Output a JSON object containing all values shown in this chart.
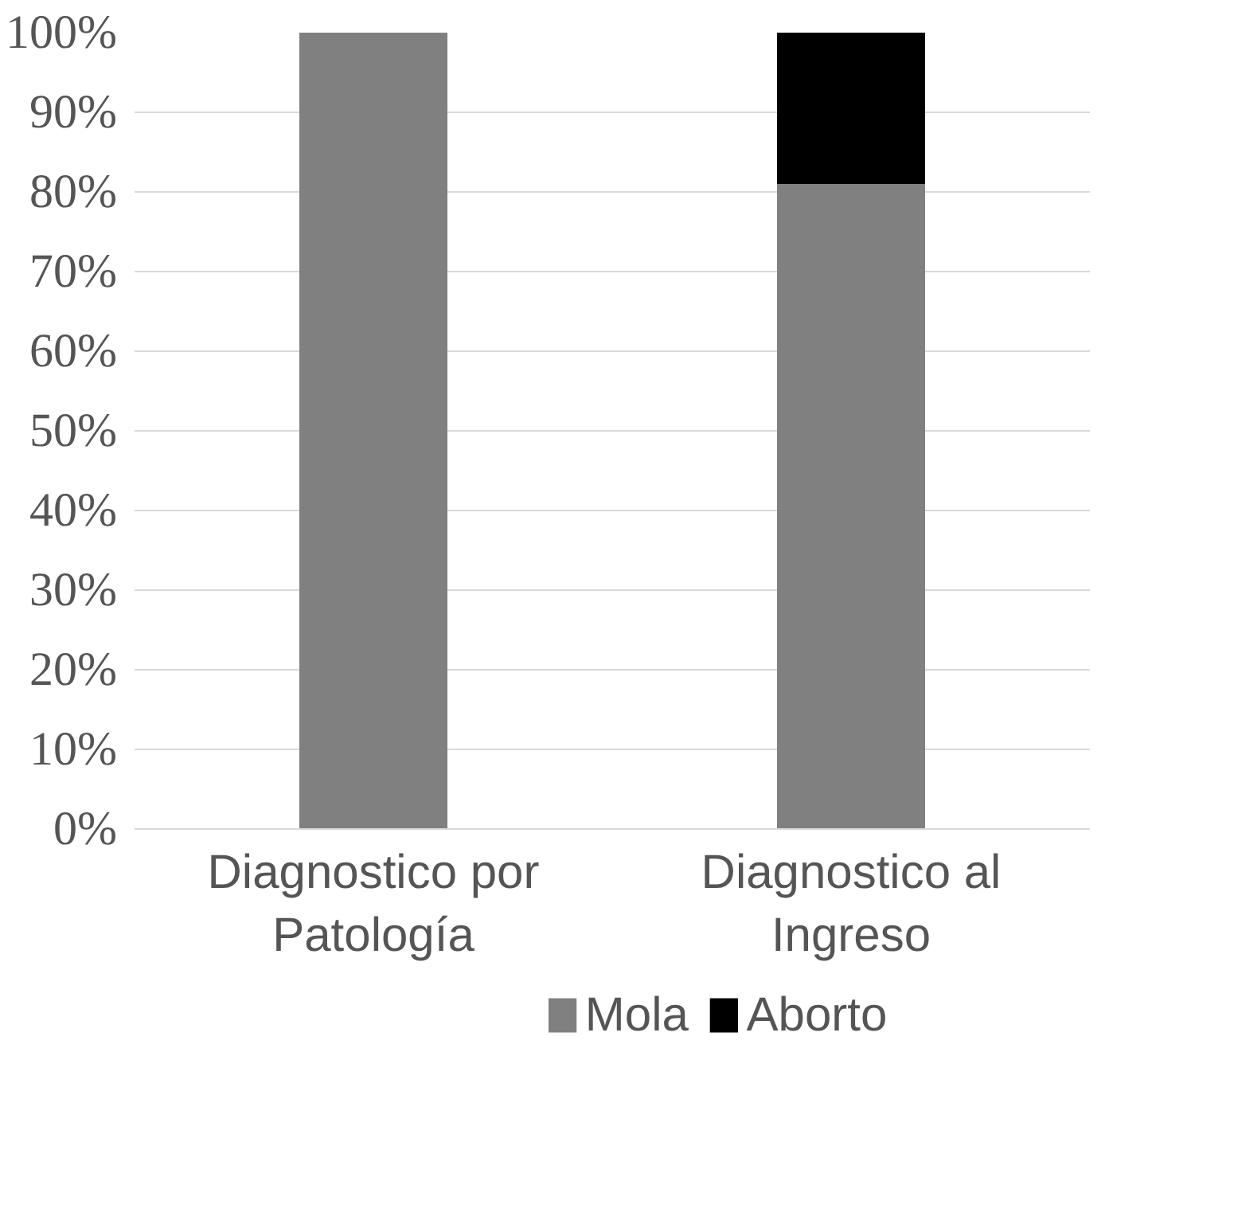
{
  "chart_data": {
    "type": "bar",
    "stacked": true,
    "categories": [
      "Diagnostico por Patología",
      "Diagnostico al Ingreso"
    ],
    "series": [
      {
        "name": "Mola",
        "color": "#808080",
        "values": [
          100,
          81
        ]
      },
      {
        "name": "Aborto",
        "color": "#000000",
        "values": [
          0,
          19
        ]
      }
    ],
    "ylim": [
      0,
      100
    ],
    "yticks": [
      {
        "value": 0,
        "label": "0%"
      },
      {
        "value": 10,
        "label": "10%"
      },
      {
        "value": 20,
        "label": "20%"
      },
      {
        "value": 30,
        "label": "30%"
      },
      {
        "value": 40,
        "label": "40%"
      },
      {
        "value": 50,
        "label": "50%"
      },
      {
        "value": 60,
        "label": "60%"
      },
      {
        "value": 70,
        "label": "70%"
      },
      {
        "value": 80,
        "label": "80%"
      },
      {
        "value": 90,
        "label": "90%"
      },
      {
        "value": 100,
        "label": "100%"
      }
    ],
    "grid": "y",
    "legend": "bottom"
  }
}
